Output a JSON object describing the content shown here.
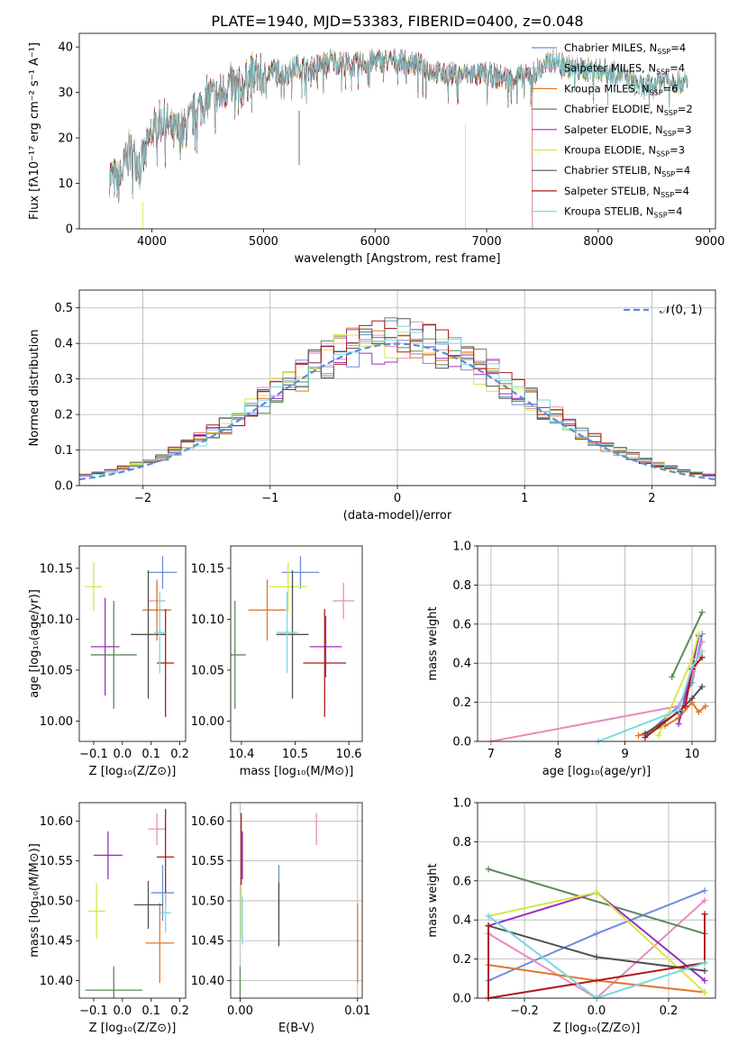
{
  "chart_data": [
    {
      "type": "line",
      "title": "PLATE=1940, MJD=53383, FIBERID=0400, z=0.048",
      "xlabel": "wavelength [Angstrom, rest frame]",
      "ylabel": "Flux [fλ10⁻¹⁷ erg cm⁻² s⁻¹ A⁻¹]",
      "xlim": [
        3350,
        9050
      ],
      "ylim": [
        0,
        43
      ],
      "xticks": [
        "4000",
        "5000",
        "6000",
        "7000",
        "8000",
        "9000"
      ],
      "yticks": [
        "0",
        "10",
        "20",
        "30",
        "40"
      ],
      "legend": "top-right",
      "series": [
        {
          "name": "Chabrier MILES, N",
          "sub": "SSP",
          "suffix": "=4",
          "color": "#6a8fd8"
        },
        {
          "name": "Salpeter MILES, N",
          "sub": "SSP",
          "suffix": "=4",
          "color": "#e88bbd"
        },
        {
          "name": "Kroupa MILES, N",
          "sub": "SSP",
          "suffix": "=6",
          "color": "#e0782a"
        },
        {
          "name": "Chabrier ELODIE, N",
          "sub": "SSP",
          "suffix": "=2",
          "color": "#5a8a5a"
        },
        {
          "name": "Salpeter ELODIE, N",
          "sub": "SSP",
          "suffix": "=3",
          "color": "#9b30c0"
        },
        {
          "name": "Kroupa ELODIE, N",
          "sub": "SSP",
          "suffix": "=3",
          "color": "#d4e84a"
        },
        {
          "name": "Chabrier STELIB, N",
          "sub": "SSP",
          "suffix": "=4",
          "color": "#505050"
        },
        {
          "name": "Salpeter STELIB, N",
          "sub": "SSP",
          "suffix": "=4",
          "color": "#b01818"
        },
        {
          "name": "Kroupa STELIB, N",
          "sub": "SSP",
          "suffix": "=4",
          "color": "#7ad8e0"
        }
      ],
      "envelope": {
        "x": [
          3620,
          3700,
          3800,
          3900,
          3950,
          4000,
          4100,
          4200,
          4300,
          4400,
          4500,
          4600,
          4700,
          4800,
          4900,
          5000,
          5100,
          5200,
          5300,
          5400,
          5500,
          5600,
          5800,
          6000,
          6200,
          6400,
          6600,
          6800,
          7000,
          7200,
          7400,
          7600,
          7800,
          8000,
          8200,
          8400,
          8600,
          8800
        ],
        "y": [
          12,
          10,
          17,
          14,
          17,
          22,
          24,
          21,
          22,
          26,
          29,
          29,
          32,
          31,
          34,
          34,
          35,
          34,
          36,
          35,
          36,
          37,
          36,
          37,
          37,
          36,
          34,
          34,
          34,
          33,
          34,
          37,
          35,
          35,
          34,
          31,
          33,
          32
        ]
      }
    },
    {
      "type": "line",
      "xlabel": "(data-model)/error",
      "ylabel": "Normed distribution",
      "xlim": [
        -2.5,
        2.5
      ],
      "ylim": [
        0,
        0.55
      ],
      "xticks": [
        "−2",
        "−1",
        "0",
        "1",
        "2"
      ],
      "yticks": [
        "0.0",
        "0.1",
        "0.2",
        "0.3",
        "0.4",
        "0.5"
      ],
      "legend": "top-right",
      "legend_label": "𝒩(0, 1)",
      "normal_color": "#5b8cd6"
    },
    {
      "type": "scatter",
      "xlabel": "Z [log₁₀(Z/Z⊙)]",
      "ylabel": "age  [log₁₀(age/yr)]",
      "xlim": [
        -0.15,
        0.22
      ],
      "ylim": [
        9.98,
        10.172
      ],
      "xticks": [
        "−0.1",
        "0.0",
        "0.1",
        "0.2"
      ],
      "yticks": [
        "10.00",
        "10.05",
        "10.10",
        "10.15"
      ],
      "points": [
        {
          "color": "#6a8fd8",
          "x": 0.14,
          "xerr": 0.05,
          "y": 10.146,
          "yerr": 0.016
        },
        {
          "color": "#e88bbd",
          "x": 0.12,
          "xerr": 0.03,
          "y": 10.118,
          "yerr": 0.018
        },
        {
          "color": "#e0782a",
          "x": 0.12,
          "xerr": 0.05,
          "y": 10.109,
          "yerr": 0.03
        },
        {
          "color": "#5a8a5a",
          "x": -0.03,
          "xerr": 0.08,
          "y": 10.065,
          "yerr": 0.053
        },
        {
          "color": "#9b30c0",
          "x": -0.06,
          "xerr": 0.05,
          "y": 10.073,
          "yerr": 0.048
        },
        {
          "color": "#d4e84a",
          "x": -0.1,
          "xerr": 0.03,
          "y": 10.132,
          "yerr": 0.024
        },
        {
          "color": "#505050",
          "x": 0.09,
          "xerr": 0.06,
          "y": 10.085,
          "yerr": 0.063
        },
        {
          "color": "#b01818",
          "x": 0.15,
          "xerr": 0.03,
          "y": 10.057,
          "yerr": 0.053
        },
        {
          "color": "#7ad8e0",
          "x": 0.13,
          "xerr": 0.02,
          "y": 10.087,
          "yerr": 0.04
        }
      ]
    },
    {
      "type": "scatter",
      "xlabel": "mass [log₁₀(M/M⊙)]",
      "xlim": [
        10.38,
        10.625
      ],
      "ylim": [
        9.98,
        10.172
      ],
      "xticks": [
        "10.4",
        "10.5",
        "10.6"
      ],
      "yticks": [
        "10.00",
        "10.05",
        "10.10",
        "10.15"
      ],
      "points": [
        {
          "color": "#6a8fd8",
          "x": 10.51,
          "xerr": 0.035,
          "y": 10.146,
          "yerr": 0.016
        },
        {
          "color": "#e88bbd",
          "x": 10.59,
          "xerr": 0.02,
          "y": 10.118,
          "yerr": 0.018
        },
        {
          "color": "#e0782a",
          "x": 10.448,
          "xerr": 0.035,
          "y": 10.109,
          "yerr": 0.03
        },
        {
          "color": "#5a8a5a",
          "x": 10.388,
          "xerr": 0.02,
          "y": 10.065,
          "yerr": 0.053
        },
        {
          "color": "#9b30c0",
          "x": 10.557,
          "xerr": 0.03,
          "y": 10.073,
          "yerr": 0.03
        },
        {
          "color": "#d4e84a",
          "x": 10.487,
          "xerr": 0.035,
          "y": 10.132,
          "yerr": 0.024
        },
        {
          "color": "#505050",
          "x": 10.495,
          "xerr": 0.03,
          "y": 10.085,
          "yerr": 0.063
        },
        {
          "color": "#b01818",
          "x": 10.555,
          "xerr": 0.04,
          "y": 10.057,
          "yerr": 0.053
        },
        {
          "color": "#7ad8e0",
          "x": 10.485,
          "xerr": 0.02,
          "y": 10.087,
          "yerr": 0.04
        }
      ]
    },
    {
      "type": "line",
      "xlabel": "age  [log₁₀(age/yr)]",
      "ylabel": "mass weight",
      "xlim": [
        6.8,
        10.35
      ],
      "ylim": [
        0,
        1
      ],
      "xticks": [
        "7",
        "8",
        "9",
        "10"
      ],
      "yticks": [
        "0.0",
        "0.2",
        "0.4",
        "0.6",
        "0.8",
        "1.0"
      ],
      "series": [
        {
          "color": "#6a8fd8",
          "x": [
            9.3,
            9.8,
            10.0,
            10.15
          ],
          "y": [
            0.03,
            0.18,
            0.3,
            0.55
          ]
        },
        {
          "color": "#e88bbd",
          "x": [
            7.0,
            9.8,
            10.0,
            10.15
          ],
          "y": [
            0.0,
            0.18,
            0.33,
            0.51
          ]
        },
        {
          "color": "#e0782a",
          "x": [
            9.2,
            9.6,
            9.8,
            10.0,
            10.1,
            10.2
          ],
          "y": [
            0.03,
            0.08,
            0.12,
            0.2,
            0.15,
            0.18
          ]
        },
        {
          "color": "#5a8a5a",
          "x": [
            9.7,
            10.15
          ],
          "y": [
            0.33,
            0.66
          ]
        },
        {
          "color": "#9b30c0",
          "x": [
            9.8,
            10.0,
            10.1
          ],
          "y": [
            0.09,
            0.37,
            0.54
          ]
        },
        {
          "color": "#d4e84a",
          "x": [
            9.5,
            10.0,
            10.1
          ],
          "y": [
            0.03,
            0.42,
            0.55
          ]
        },
        {
          "color": "#505050",
          "x": [
            9.3,
            9.8,
            10.0,
            10.15
          ],
          "y": [
            0.04,
            0.15,
            0.22,
            0.28
          ]
        },
        {
          "color": "#b01818",
          "x": [
            9.3,
            9.9,
            10.0,
            10.15
          ],
          "y": [
            0.02,
            0.18,
            0.37,
            0.43
          ]
        },
        {
          "color": "#7ad8e0",
          "x": [
            8.6,
            9.8,
            10.0,
            10.15
          ],
          "y": [
            0.0,
            0.16,
            0.38,
            0.46
          ]
        }
      ]
    },
    {
      "type": "scatter",
      "xlabel": "Z [log₁₀(Z/Z⊙)]",
      "ylabel": "mass [log₁₀(M/M⊙)]",
      "xlim": [
        -0.15,
        0.22
      ],
      "ylim": [
        10.378,
        10.623
      ],
      "xticks": [
        "−0.1",
        "0.0",
        "0.1",
        "0.2"
      ],
      "yticks": [
        "10.40",
        "10.45",
        "10.50",
        "10.55",
        "10.60"
      ],
      "points": [
        {
          "color": "#6a8fd8",
          "x": 0.14,
          "xerr": 0.04,
          "y": 10.51,
          "yerr": 0.035
        },
        {
          "color": "#e88bbd",
          "x": 0.12,
          "xerr": 0.03,
          "y": 10.59,
          "yerr": 0.02
        },
        {
          "color": "#e0782a",
          "x": 0.13,
          "xerr": 0.05,
          "y": 10.447,
          "yerr": 0.05
        },
        {
          "color": "#5a8a5a",
          "x": -0.03,
          "xerr": 0.1,
          "y": 10.388,
          "yerr": 0.03
        },
        {
          "color": "#9b30c0",
          "x": -0.05,
          "xerr": 0.05,
          "y": 10.557,
          "yerr": 0.03
        },
        {
          "color": "#d4e84a",
          "x": -0.09,
          "xerr": 0.03,
          "y": 10.487,
          "yerr": 0.035
        },
        {
          "color": "#505050",
          "x": 0.09,
          "xerr": 0.05,
          "y": 10.495,
          "yerr": 0.03
        },
        {
          "color": "#b01818",
          "x": 0.15,
          "xerr": 0.03,
          "y": 10.555,
          "yerr": 0.06
        },
        {
          "color": "#7ad8e0",
          "x": 0.15,
          "xerr": 0.02,
          "y": 10.485,
          "yerr": 0.025
        }
      ]
    },
    {
      "type": "scatter",
      "xlabel": "E(B-V)",
      "xlim": [
        -0.0008,
        0.0104
      ],
      "ylim": [
        10.378,
        10.623
      ],
      "xticks": [
        "0.00",
        "0.01"
      ],
      "yticks": [
        "10.40",
        "10.45",
        "10.50",
        "10.55",
        "10.60"
      ],
      "points": [
        {
          "color": "#6a8fd8",
          "x": 0.0033,
          "xerr": 0,
          "y": 10.51,
          "yerr": 0.035
        },
        {
          "color": "#e88bbd",
          "x": 0.0065,
          "xerr": 0,
          "y": 10.59,
          "yerr": 0.02
        },
        {
          "color": "#e0782a",
          "x": 0.01,
          "xerr": 0,
          "y": 10.447,
          "yerr": 0.05
        },
        {
          "color": "#5a8a5a",
          "x": 0.0,
          "xerr": 0,
          "y": 10.388,
          "yerr": 0.03
        },
        {
          "color": "#9b30c0",
          "x": 0.0002,
          "xerr": 0,
          "y": 10.557,
          "yerr": 0.03
        },
        {
          "color": "#d4e84a",
          "x": 0.0001,
          "xerr": 0,
          "y": 10.487,
          "yerr": 0.035
        },
        {
          "color": "#505050",
          "x": 0.0033,
          "xerr": 0,
          "y": 10.483,
          "yerr": 0.04
        },
        {
          "color": "#b01818",
          "x": 0.0001,
          "xerr": 0,
          "y": 10.565,
          "yerr": 0.045
        },
        {
          "color": "#7ad8e0",
          "x": 0.0002,
          "xerr": 0,
          "y": 10.475,
          "yerr": 0.03
        }
      ]
    },
    {
      "type": "line",
      "xlabel": "Z [log₁₀(Z/Z⊙)]",
      "ylabel": "mass weight",
      "xlim": [
        -0.33,
        0.33
      ],
      "ylim": [
        0,
        1
      ],
      "xticks": [
        "−0.2",
        "0.0",
        "0.2"
      ],
      "yticks": [
        "0.0",
        "0.2",
        "0.4",
        "0.6",
        "0.8",
        "1.0"
      ],
      "series": [
        {
          "color": "#6a8fd8",
          "x": [
            -0.3,
            0.0,
            0.3
          ],
          "y": [
            0.09,
            0.33,
            0.55
          ]
        },
        {
          "color": "#e88bbd",
          "x": [
            -0.3,
            0.0,
            0.3
          ],
          "y": [
            0.33,
            0.0,
            0.5
          ]
        },
        {
          "color": "#e0782a",
          "x": [
            -0.3,
            0.0,
            0.3
          ],
          "y": [
            0.17,
            0.09,
            0.03
          ]
        },
        {
          "color": "#5a8a5a",
          "x": [
            -0.3,
            0.3
          ],
          "y": [
            0.66,
            0.33
          ]
        },
        {
          "color": "#9b30c0",
          "x": [
            -0.3,
            0.0,
            0.3
          ],
          "y": [
            0.37,
            0.54,
            0.09
          ]
        },
        {
          "color": "#d4e84a",
          "x": [
            -0.3,
            0.0,
            0.3
          ],
          "y": [
            0.42,
            0.54,
            0.03
          ]
        },
        {
          "color": "#505050",
          "x": [
            -0.3,
            0.0,
            0.3
          ],
          "y": [
            0.37,
            0.21,
            0.14
          ]
        },
        {
          "color": "#b01818",
          "x": [
            -0.3,
            -0.3,
            0.3,
            0.3
          ],
          "y": [
            0.37,
            0.0,
            0.18,
            0.43
          ]
        },
        {
          "color": "#7ad8e0",
          "x": [
            -0.3,
            0.0,
            0.3
          ],
          "y": [
            0.42,
            0.0,
            0.18
          ]
        }
      ]
    }
  ]
}
